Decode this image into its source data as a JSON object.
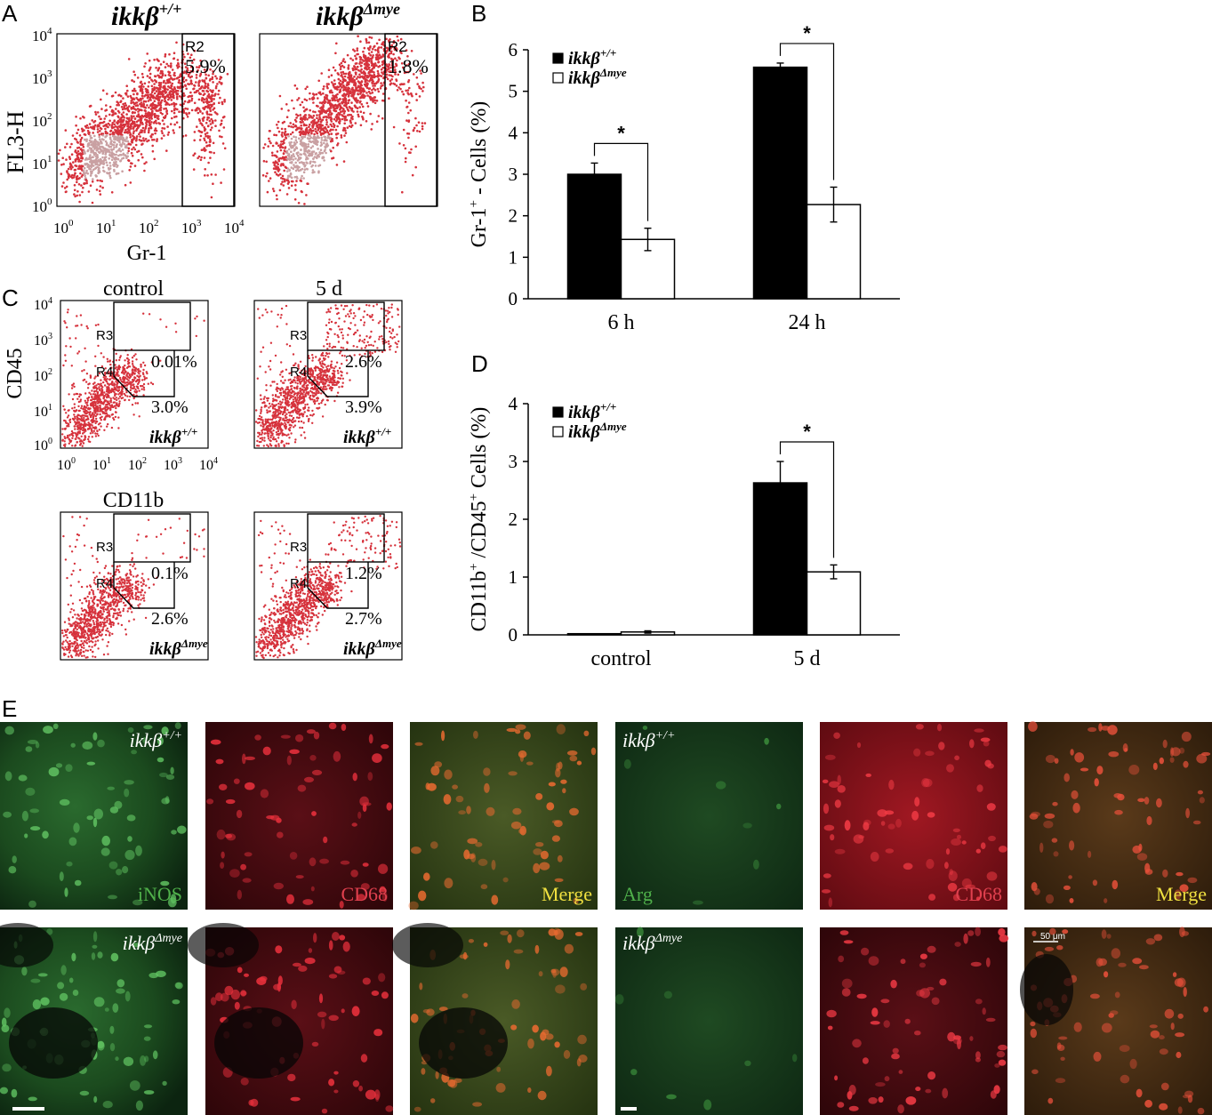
{
  "panel_a": {
    "letter": "A",
    "genotypes": [
      {
        "base": "ikkβ",
        "sup": "+/+"
      },
      {
        "base": "ikkβ",
        "sup": "Δmye"
      }
    ],
    "ylabel": "FL3-H",
    "xlabel": "Gr-1",
    "gate_label": "R2",
    "gate_pcts": [
      "5.9%",
      "1.8%"
    ],
    "x_tick_bases": [
      "10",
      "10",
      "10",
      "10",
      "10"
    ],
    "x_tick_exps": [
      "0",
      "1",
      "2",
      "3",
      "4"
    ],
    "y_tick_bases": [
      "10",
      "10",
      "10",
      "10",
      "10"
    ],
    "y_tick_exps": [
      "4",
      "3",
      "2",
      "1",
      "0"
    ],
    "dot_color": "#d6323c"
  },
  "panel_c": {
    "letter": "C",
    "col_titles": [
      "control",
      "5 d"
    ],
    "ylabel": "CD45",
    "xlabel": "CD11b",
    "r3": "R3",
    "r4": "R4",
    "pcts": [
      [
        "0.01%",
        "3.0%"
      ],
      [
        "2.6%",
        "3.9%"
      ],
      [
        "0.1%",
        "2.6%"
      ],
      [
        "1.2%",
        "2.7%"
      ]
    ],
    "genotypes": [
      {
        "base": "ikkβ",
        "sup": "+/+"
      },
      {
        "base": "ikkβ",
        "sup": "+/+"
      },
      {
        "base": "ikkβ",
        "sup": "Δmye"
      },
      {
        "base": "ikkβ",
        "sup": "Δmye"
      }
    ],
    "x_tick_bases": [
      "10",
      "10",
      "10",
      "10",
      "10"
    ],
    "x_tick_exps": [
      "0",
      "1",
      "2",
      "3",
      "4"
    ],
    "y_tick_bases": [
      "10",
      "10",
      "10",
      "10",
      "10"
    ],
    "y_tick_exps": [
      "4",
      "3",
      "2",
      "1",
      "0"
    ]
  },
  "chart_data": [
    {
      "panel": "B",
      "type": "bar",
      "categories": [
        "6 h",
        "24 h"
      ],
      "series": [
        {
          "name": "ikkβ+/+",
          "values": [
            3.0,
            5.58
          ],
          "errors": [
            0.27,
            0.1
          ],
          "fill": "#000000"
        },
        {
          "name": "ikkβΔmye",
          "values": [
            1.43,
            2.27
          ],
          "errors": [
            0.27,
            0.42
          ],
          "fill": "#ffffff"
        }
      ],
      "ylabel_main": "Gr-1",
      "ylabel_sup": "+",
      "ylabel_rest": " - Cells (%)",
      "ylim": [
        0,
        6
      ],
      "yticks": [
        "0",
        "1",
        "2",
        "3",
        "4",
        "5",
        "6"
      ],
      "significance": [
        "*",
        "*"
      ],
      "legend_position": "top-left"
    },
    {
      "panel": "D",
      "type": "bar",
      "categories": [
        "control",
        "5 d"
      ],
      "series": [
        {
          "name": "ikkβ+/+",
          "values": [
            0.02,
            2.63
          ],
          "errors": [
            0.0,
            0.37
          ],
          "fill": "#000000"
        },
        {
          "name": "ikkβΔmye",
          "values": [
            0.05,
            1.09
          ],
          "errors": [
            0.02,
            0.12
          ],
          "fill": "#ffffff"
        }
      ],
      "ylabel_main": "CD11b",
      "ylabel_sup": "+",
      "ylabel_mid": " /CD45",
      "ylabel_sup2": "+",
      "ylabel_rest": " Cells (%)",
      "ylim": [
        0,
        4
      ],
      "yticks": [
        "0",
        "1",
        "2",
        "3",
        "4"
      ],
      "significance": [
        "",
        "*"
      ],
      "legend_position": "top-left"
    }
  ],
  "panel_b_letter": "B",
  "panel_d_letter": "D",
  "panel_e": {
    "letter": "E",
    "genotype_top": {
      "base": "ikkβ",
      "sup": "+/+"
    },
    "genotype_bottom": {
      "base": "ikkβ",
      "sup": "Δmye"
    },
    "labels": [
      "iNOS",
      "CD68",
      "Merge",
      "Arg",
      "CD68",
      "Merge"
    ],
    "label_colors": [
      "#4fb04a",
      "#e0404e",
      "#f0e040",
      "#4fb04a",
      "#e0404e",
      "#f0e040"
    ],
    "scale_text": "50 μm"
  }
}
